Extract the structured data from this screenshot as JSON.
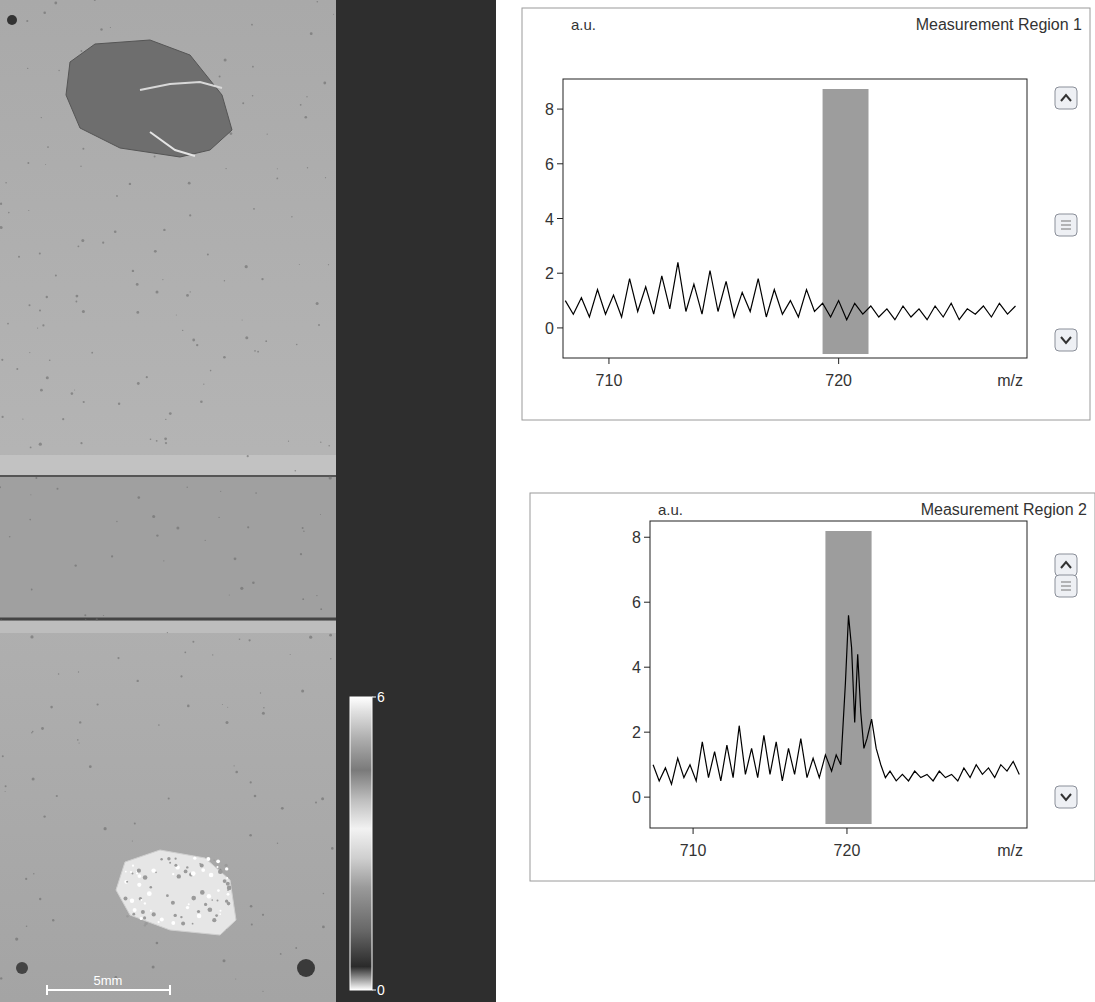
{
  "chart_data": [
    {
      "type": "line",
      "title": "Measurement Region 1",
      "y_label": "a.u.",
      "x_label": "m/z",
      "color": "#000000",
      "xlim": [
        708,
        728.2
      ],
      "xticks": [
        710,
        720
      ],
      "ylim": [
        -1.1,
        9.1
      ],
      "yticks": [
        0,
        2,
        4,
        6,
        8
      ],
      "highlight_range": [
        719.3,
        721.3
      ],
      "x": [
        708.1,
        708.45,
        708.8,
        709.15,
        709.5,
        709.85,
        710.2,
        710.55,
        710.9,
        711.25,
        711.6,
        711.95,
        712.3,
        712.65,
        713.0,
        713.35,
        713.7,
        714.05,
        714.4,
        714.75,
        715.1,
        715.45,
        715.8,
        716.15,
        716.5,
        716.85,
        717.2,
        717.55,
        717.9,
        718.25,
        718.6,
        718.95,
        719.3,
        719.65,
        720.0,
        720.35,
        720.7,
        721.05,
        721.4,
        721.75,
        722.1,
        722.45,
        722.8,
        723.15,
        723.5,
        723.85,
        724.2,
        724.55,
        724.9,
        725.25,
        725.6,
        725.95,
        726.3,
        726.65,
        727.0,
        727.35,
        727.7
      ],
      "values": [
        1.0,
        0.5,
        1.1,
        0.4,
        1.4,
        0.5,
        1.2,
        0.4,
        1.8,
        0.6,
        1.5,
        0.5,
        1.9,
        0.7,
        2.4,
        0.6,
        1.6,
        0.5,
        2.1,
        0.6,
        1.7,
        0.4,
        1.3,
        0.6,
        1.8,
        0.4,
        1.4,
        0.5,
        1.0,
        0.4,
        1.4,
        0.6,
        0.9,
        0.4,
        1.0,
        0.3,
        0.9,
        0.5,
        0.8,
        0.4,
        0.7,
        0.3,
        0.8,
        0.4,
        0.7,
        0.3,
        0.8,
        0.4,
        0.9,
        0.3,
        0.7,
        0.5,
        0.8,
        0.4,
        0.9,
        0.5,
        0.8
      ]
    },
    {
      "type": "line",
      "title": "Measurement Region 2",
      "y_label": "a.u.",
      "x_label": "m/z",
      "color": "#000000",
      "xlim": [
        707.2,
        731.7
      ],
      "xticks": [
        710,
        720
      ],
      "ylim": [
        -0.95,
        8.5
      ],
      "yticks": [
        0,
        2,
        4,
        6,
        8
      ],
      "highlight_range": [
        718.6,
        721.6
      ],
      "x": [
        707.4,
        707.8,
        708.2,
        708.6,
        709.0,
        709.4,
        709.8,
        710.2,
        710.6,
        711.0,
        711.4,
        711.8,
        712.2,
        712.6,
        713.0,
        713.4,
        713.8,
        714.2,
        714.6,
        715.0,
        715.4,
        715.8,
        716.2,
        716.6,
        717.0,
        717.4,
        717.8,
        718.2,
        718.6,
        719.0,
        719.3,
        719.6,
        719.9,
        720.1,
        720.3,
        720.5,
        720.7,
        720.9,
        721.1,
        721.3,
        721.6,
        721.9,
        722.2,
        722.5,
        722.8,
        723.2,
        723.6,
        724.0,
        724.4,
        724.8,
        725.2,
        725.6,
        726.0,
        726.4,
        726.8,
        727.2,
        727.6,
        728.0,
        728.4,
        728.8,
        729.2,
        729.6,
        730.0,
        730.4,
        730.8,
        731.2
      ],
      "values": [
        1.0,
        0.5,
        0.9,
        0.4,
        1.2,
        0.6,
        1.0,
        0.5,
        1.7,
        0.6,
        1.4,
        0.5,
        1.6,
        0.6,
        2.2,
        0.7,
        1.5,
        0.6,
        1.9,
        0.7,
        1.7,
        0.5,
        1.5,
        0.7,
        1.8,
        0.6,
        1.2,
        0.6,
        1.3,
        0.8,
        1.3,
        1.0,
        3.5,
        5.6,
        4.6,
        2.3,
        4.4,
        2.6,
        1.5,
        1.8,
        2.4,
        1.5,
        1.0,
        0.6,
        0.8,
        0.5,
        0.7,
        0.5,
        0.8,
        0.6,
        0.7,
        0.5,
        0.8,
        0.6,
        0.7,
        0.5,
        0.9,
        0.6,
        1.0,
        0.7,
        0.9,
        0.6,
        1.0,
        0.8,
        1.1,
        0.7
      ]
    }
  ],
  "image": {
    "scale_bar": "5mm",
    "colorbar": {
      "range": [
        0,
        6
      ],
      "ticks": [
        0,
        6
      ]
    }
  }
}
